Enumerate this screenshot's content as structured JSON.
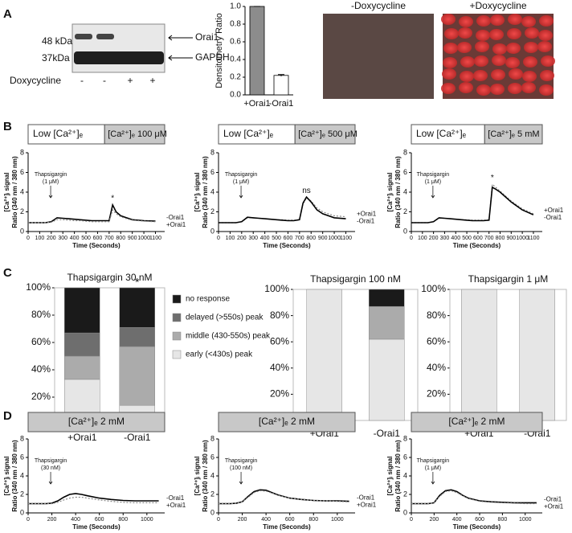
{
  "panel_labels": [
    "A",
    "B",
    "C",
    "D"
  ],
  "blot": {
    "sizes": [
      "48 kDa",
      "37kDa"
    ],
    "bands": [
      "Orai1",
      "GAPDH"
    ],
    "treatment": "Doxycycline",
    "lanes": [
      "-",
      "-",
      "+",
      "+"
    ]
  },
  "images": [
    "-Doxycycline",
    "+Doxycycline"
  ],
  "chart_data": [
    {
      "type": "bar",
      "ylabel": "Densitometry Ratio",
      "categories": [
        "+Orai1",
        "-Orai1"
      ],
      "values": [
        1.0,
        0.22
      ],
      "errors": [
        0,
        0.01
      ],
      "colors": [
        "#8c8c8c",
        "#ffffff"
      ],
      "ylim": [
        0,
        1
      ],
      "yticks": [
        {
          "value": 0,
          "label": "0.0"
        },
        {
          "value": 0.2,
          "label": "0.2"
        },
        {
          "value": 0.4,
          "label": "0.4"
        },
        {
          "value": 0.6,
          "label": "0.6"
        },
        {
          "value": 0.8,
          "label": "0.8"
        },
        {
          "value": 1,
          "label": "1.0"
        }
      ]
    },
    {
      "type": "line",
      "header": [
        "Low [Ca²⁺]ₑ",
        "[Ca²⁺]ₑ 100 μM"
      ],
      "annotations": [
        "Thapsigargin",
        "(1 μM)",
        "*"
      ],
      "ylabel": [
        "[Ca²⁺]ᵢ signal",
        "Ratio (340 nm / 380 nm)"
      ],
      "xlabel": "Time (Seconds)",
      "x": [
        0,
        50,
        100,
        150,
        200,
        250,
        300,
        350,
        400,
        450,
        500,
        550,
        600,
        650,
        700,
        730,
        760,
        800,
        850,
        900,
        1000,
        1100
      ],
      "series": [
        {
          "name": "-Orai1",
          "color": "#000000",
          "style": "solid",
          "values": [
            0.9,
            0.9,
            0.9,
            0.9,
            1.0,
            1.4,
            1.35,
            1.3,
            1.25,
            1.2,
            1.15,
            1.1,
            1.1,
            1.1,
            1.1,
            2.7,
            2.0,
            1.6,
            1.4,
            1.2,
            1.1,
            1.05
          ]
        },
        {
          "name": "+Orai1",
          "color": "#888888",
          "style": "dotted",
          "values": [
            0.9,
            0.9,
            0.9,
            0.9,
            0.95,
            1.2,
            1.2,
            1.15,
            1.1,
            1.1,
            1.05,
            1.0,
            1.0,
            1.0,
            1.0,
            2.2,
            1.8,
            1.5,
            1.3,
            1.15,
            1.05,
            1.0
          ]
        }
      ],
      "xlim": [
        0,
        1180
      ],
      "xticks": [
        0,
        100,
        200,
        300,
        400,
        500,
        600,
        700,
        800,
        900,
        1000,
        1100
      ],
      "ylim": [
        0,
        8
      ],
      "yticks": [
        0,
        2,
        4,
        6,
        8
      ]
    },
    {
      "type": "line",
      "header": [
        "Low [Ca²⁺]ₑ",
        "[Ca²⁺]ₑ 500 μM"
      ],
      "annotations": [
        "Thapsigargin",
        "(1 μM)",
        "ns"
      ],
      "ylabel": [
        "[Ca²⁺]ᵢ signal",
        "Ratio (340 nm / 380 nm)"
      ],
      "xlabel": "Time (Seconds)",
      "x": [
        0,
        50,
        100,
        150,
        200,
        250,
        300,
        350,
        400,
        450,
        500,
        550,
        600,
        650,
        700,
        730,
        760,
        800,
        850,
        900,
        1000,
        1100
      ],
      "series": [
        {
          "name": "+Orai1",
          "color": "#888888",
          "style": "dotted",
          "values": [
            0.9,
            0.9,
            0.9,
            0.9,
            1.0,
            1.4,
            1.4,
            1.35,
            1.3,
            1.25,
            1.2,
            1.2,
            1.15,
            1.15,
            1.2,
            2.8,
            3.4,
            3.1,
            2.4,
            2.0,
            1.6,
            1.5
          ]
        },
        {
          "name": "-Orai1",
          "color": "#000000",
          "style": "solid",
          "values": [
            0.9,
            0.9,
            0.9,
            0.9,
            1.0,
            1.45,
            1.4,
            1.35,
            1.3,
            1.25,
            1.2,
            1.15,
            1.1,
            1.1,
            1.2,
            2.9,
            3.5,
            3.0,
            2.2,
            1.8,
            1.4,
            1.3
          ]
        }
      ],
      "xlim": [
        0,
        1180
      ],
      "xticks": [
        0,
        100,
        200,
        300,
        400,
        500,
        600,
        700,
        800,
        900,
        1000,
        1100
      ],
      "ylim": [
        0,
        8
      ],
      "yticks": [
        0,
        2,
        4,
        6,
        8
      ]
    },
    {
      "type": "line",
      "header": [
        "Low [Ca²⁺]ₑ",
        "[Ca²⁺]ₑ 5 mM"
      ],
      "annotations": [
        "Thapsigargin",
        "(1 μM)",
        "*"
      ],
      "ylabel": [
        "[Ca²⁺]ᵢ signal",
        "Ratio (340 nm / 380 nm)"
      ],
      "xlabel": "Time (Seconds)",
      "x": [
        0,
        50,
        100,
        150,
        200,
        250,
        300,
        350,
        400,
        450,
        500,
        550,
        600,
        650,
        700,
        730,
        760,
        800,
        850,
        900,
        1000,
        1100
      ],
      "series": [
        {
          "name": "+Orai1",
          "color": "#888888",
          "style": "dotted",
          "values": [
            0.9,
            0.9,
            0.9,
            0.9,
            1.0,
            1.35,
            1.35,
            1.3,
            1.25,
            1.2,
            1.2,
            1.15,
            1.15,
            1.15,
            1.2,
            4.8,
            4.5,
            4.1,
            3.6,
            3.1,
            2.3,
            1.8
          ]
        },
        {
          "name": "-Orai1",
          "color": "#000000",
          "style": "solid",
          "values": [
            0.9,
            0.9,
            0.9,
            0.9,
            1.0,
            1.4,
            1.35,
            1.3,
            1.25,
            1.2,
            1.15,
            1.1,
            1.1,
            1.1,
            1.15,
            4.5,
            4.3,
            4.0,
            3.5,
            3.0,
            2.2,
            1.7
          ]
        }
      ],
      "xlim": [
        0,
        1180
      ],
      "xticks": [
        0,
        100,
        200,
        300,
        400,
        500,
        600,
        700,
        800,
        900,
        1000,
        1100
      ],
      "ylim": [
        0,
        8
      ],
      "yticks": [
        0,
        2,
        4,
        6,
        8
      ]
    },
    {
      "type": "stacked_bar",
      "title": "Thapsigargin 30 nM",
      "categories": [
        "+Orai1",
        "-Orai1"
      ],
      "legend": true,
      "annotations": [
        "*"
      ],
      "series": [
        {
          "name": "early (<430s) peak",
          "color": "#e6e6e6",
          "values": [
            33,
            14
          ]
        },
        {
          "name": "middle (430-550s) peak",
          "color": "#ababab",
          "values": [
            17,
            43
          ]
        },
        {
          "name": "delayed (>550s) peak",
          "color": "#6e6e6e",
          "values": [
            17,
            14
          ]
        },
        {
          "name": "no response",
          "color": "#1a1a1a",
          "values": [
            33,
            29
          ]
        }
      ],
      "ylim": [
        0,
        100
      ],
      "yticks": [
        {
          "value": 0,
          "label": "0%"
        },
        {
          "value": 20,
          "label": "20%"
        },
        {
          "value": 40,
          "label": "40%"
        },
        {
          "value": 60,
          "label": "60%"
        },
        {
          "value": 80,
          "label": "80%"
        },
        {
          "value": 100,
          "label": "100%"
        }
      ]
    },
    {
      "type": "stacked_bar",
      "title": "Thapsigargin 100 nM",
      "categories": [
        "+Orai1",
        "-Orai1"
      ],
      "legend": false,
      "series": [
        {
          "color": "#e6e6e6",
          "values": [
            100,
            62
          ]
        },
        {
          "color": "#ababab",
          "values": [
            0,
            25
          ]
        },
        {
          "color": "#6e6e6e",
          "values": [
            0,
            0
          ]
        },
        {
          "color": "#1a1a1a",
          "values": [
            0,
            13
          ]
        }
      ],
      "ylim": [
        0,
        100
      ],
      "yticks": [
        {
          "value": 0,
          "label": "0%"
        },
        {
          "value": 20,
          "label": "20%"
        },
        {
          "value": 40,
          "label": "40%"
        },
        {
          "value": 60,
          "label": "60%"
        },
        {
          "value": 80,
          "label": "80%"
        },
        {
          "value": 100,
          "label": "100%"
        }
      ]
    },
    {
      "type": "stacked_bar",
      "title": "Thapsigargin 1 μM",
      "categories": [
        "+Orai1",
        "-Orai1"
      ],
      "legend": false,
      "series": [
        {
          "color": "#e6e6e6",
          "values": [
            100,
            100
          ]
        }
      ],
      "ylim": [
        0,
        100
      ],
      "yticks": [
        {
          "value": 0,
          "label": "0%"
        },
        {
          "value": 20,
          "label": "20%"
        },
        {
          "value": 40,
          "label": "40%"
        },
        {
          "value": 60,
          "label": "60%"
        },
        {
          "value": 80,
          "label": "80%"
        },
        {
          "value": 100,
          "label": "100%"
        }
      ]
    },
    {
      "type": "line",
      "header": [
        "[Ca²⁺]ₑ 2 mM"
      ],
      "annotations": [
        "Thapsigargin",
        "(30 nM)"
      ],
      "ylabel": [
        "[Ca²⁺]ᵢ signal",
        "Ratio (340 nm / 380 nm)"
      ],
      "xlabel": "Time (Seconds)",
      "x": [
        0,
        50,
        100,
        150,
        200,
        250,
        300,
        350,
        400,
        450,
        500,
        600,
        700,
        800,
        900,
        1000,
        1100
      ],
      "series": [
        {
          "name": "-Orai1",
          "color": "#000000",
          "style": "solid",
          "values": [
            1.0,
            1.0,
            1.0,
            1.0,
            1.05,
            1.3,
            1.7,
            2.0,
            2.1,
            2.0,
            1.85,
            1.6,
            1.45,
            1.35,
            1.3,
            1.3,
            1.3
          ]
        },
        {
          "name": "+Orai1",
          "color": "#888888",
          "style": "dotted",
          "values": [
            1.0,
            1.0,
            1.0,
            1.0,
            1.0,
            1.15,
            1.4,
            1.6,
            1.7,
            1.7,
            1.6,
            1.4,
            1.25,
            1.15,
            1.1,
            1.1,
            1.1
          ]
        }
      ],
      "xlim": [
        0,
        1150
      ],
      "xticks": [
        0,
        200,
        400,
        600,
        800,
        1000
      ],
      "ylim": [
        0,
        8
      ],
      "yticks": [
        0,
        2,
        4,
        6,
        8
      ]
    },
    {
      "type": "line",
      "header": [
        "[Ca²⁺]ₑ 2 mM"
      ],
      "annotations": [
        "Thapsigargin",
        "(100 nM)"
      ],
      "ylabel": [
        "[Ca²⁺]ᵢ signal",
        "Ratio (340 nm / 380 nm)"
      ],
      "xlabel": "Time (Seconds)",
      "x": [
        0,
        50,
        100,
        150,
        200,
        250,
        300,
        350,
        400,
        450,
        500,
        600,
        700,
        800,
        900,
        1000,
        1100
      ],
      "series": [
        {
          "name": "-Orai1",
          "color": "#000000",
          "style": "solid",
          "values": [
            1.0,
            1.0,
            1.0,
            1.05,
            1.2,
            1.8,
            2.3,
            2.5,
            2.45,
            2.2,
            1.95,
            1.6,
            1.45,
            1.35,
            1.3,
            1.3,
            1.25
          ]
        },
        {
          "name": "+Orai1",
          "color": "#888888",
          "style": "dotted",
          "values": [
            1.0,
            1.0,
            1.0,
            1.05,
            1.2,
            1.7,
            2.2,
            2.4,
            2.35,
            2.15,
            1.9,
            1.6,
            1.45,
            1.35,
            1.3,
            1.25,
            1.2
          ]
        }
      ],
      "xlim": [
        0,
        1150
      ],
      "xticks": [
        0,
        200,
        400,
        600,
        800,
        1000
      ],
      "ylim": [
        0,
        8
      ],
      "yticks": [
        0,
        2,
        4,
        6,
        8
      ]
    },
    {
      "type": "line",
      "header": [
        "[Ca²⁺]ₑ 2 mM"
      ],
      "annotations": [
        "Thapsigargin",
        "(1 μM)"
      ],
      "ylabel": [
        "[Ca²⁺]ᵢ signal",
        "Ratio (340 nm / 380 nm)"
      ],
      "xlabel": "Time (Seconds)",
      "x": [
        0,
        50,
        100,
        150,
        200,
        250,
        300,
        350,
        400,
        450,
        500,
        600,
        700,
        800,
        900,
        1000,
        1100
      ],
      "series": [
        {
          "name": "-Orai1",
          "color": "#000000",
          "style": "solid",
          "values": [
            1.0,
            1.0,
            1.0,
            1.0,
            1.1,
            1.9,
            2.4,
            2.5,
            2.3,
            1.9,
            1.6,
            1.3,
            1.2,
            1.15,
            1.1,
            1.1,
            1.1
          ]
        },
        {
          "name": "+Orai1",
          "color": "#888888",
          "style": "dotted",
          "values": [
            1.0,
            1.0,
            1.0,
            1.0,
            1.1,
            1.8,
            2.3,
            2.4,
            2.2,
            1.85,
            1.55,
            1.25,
            1.15,
            1.1,
            1.05,
            1.0,
            1.0
          ]
        }
      ],
      "xlim": [
        0,
        1150
      ],
      "xticks": [
        0,
        200,
        400,
        600,
        800,
        1000
      ],
      "ylim": [
        0,
        8
      ],
      "yticks": [
        0,
        2,
        4,
        6,
        8
      ]
    }
  ]
}
